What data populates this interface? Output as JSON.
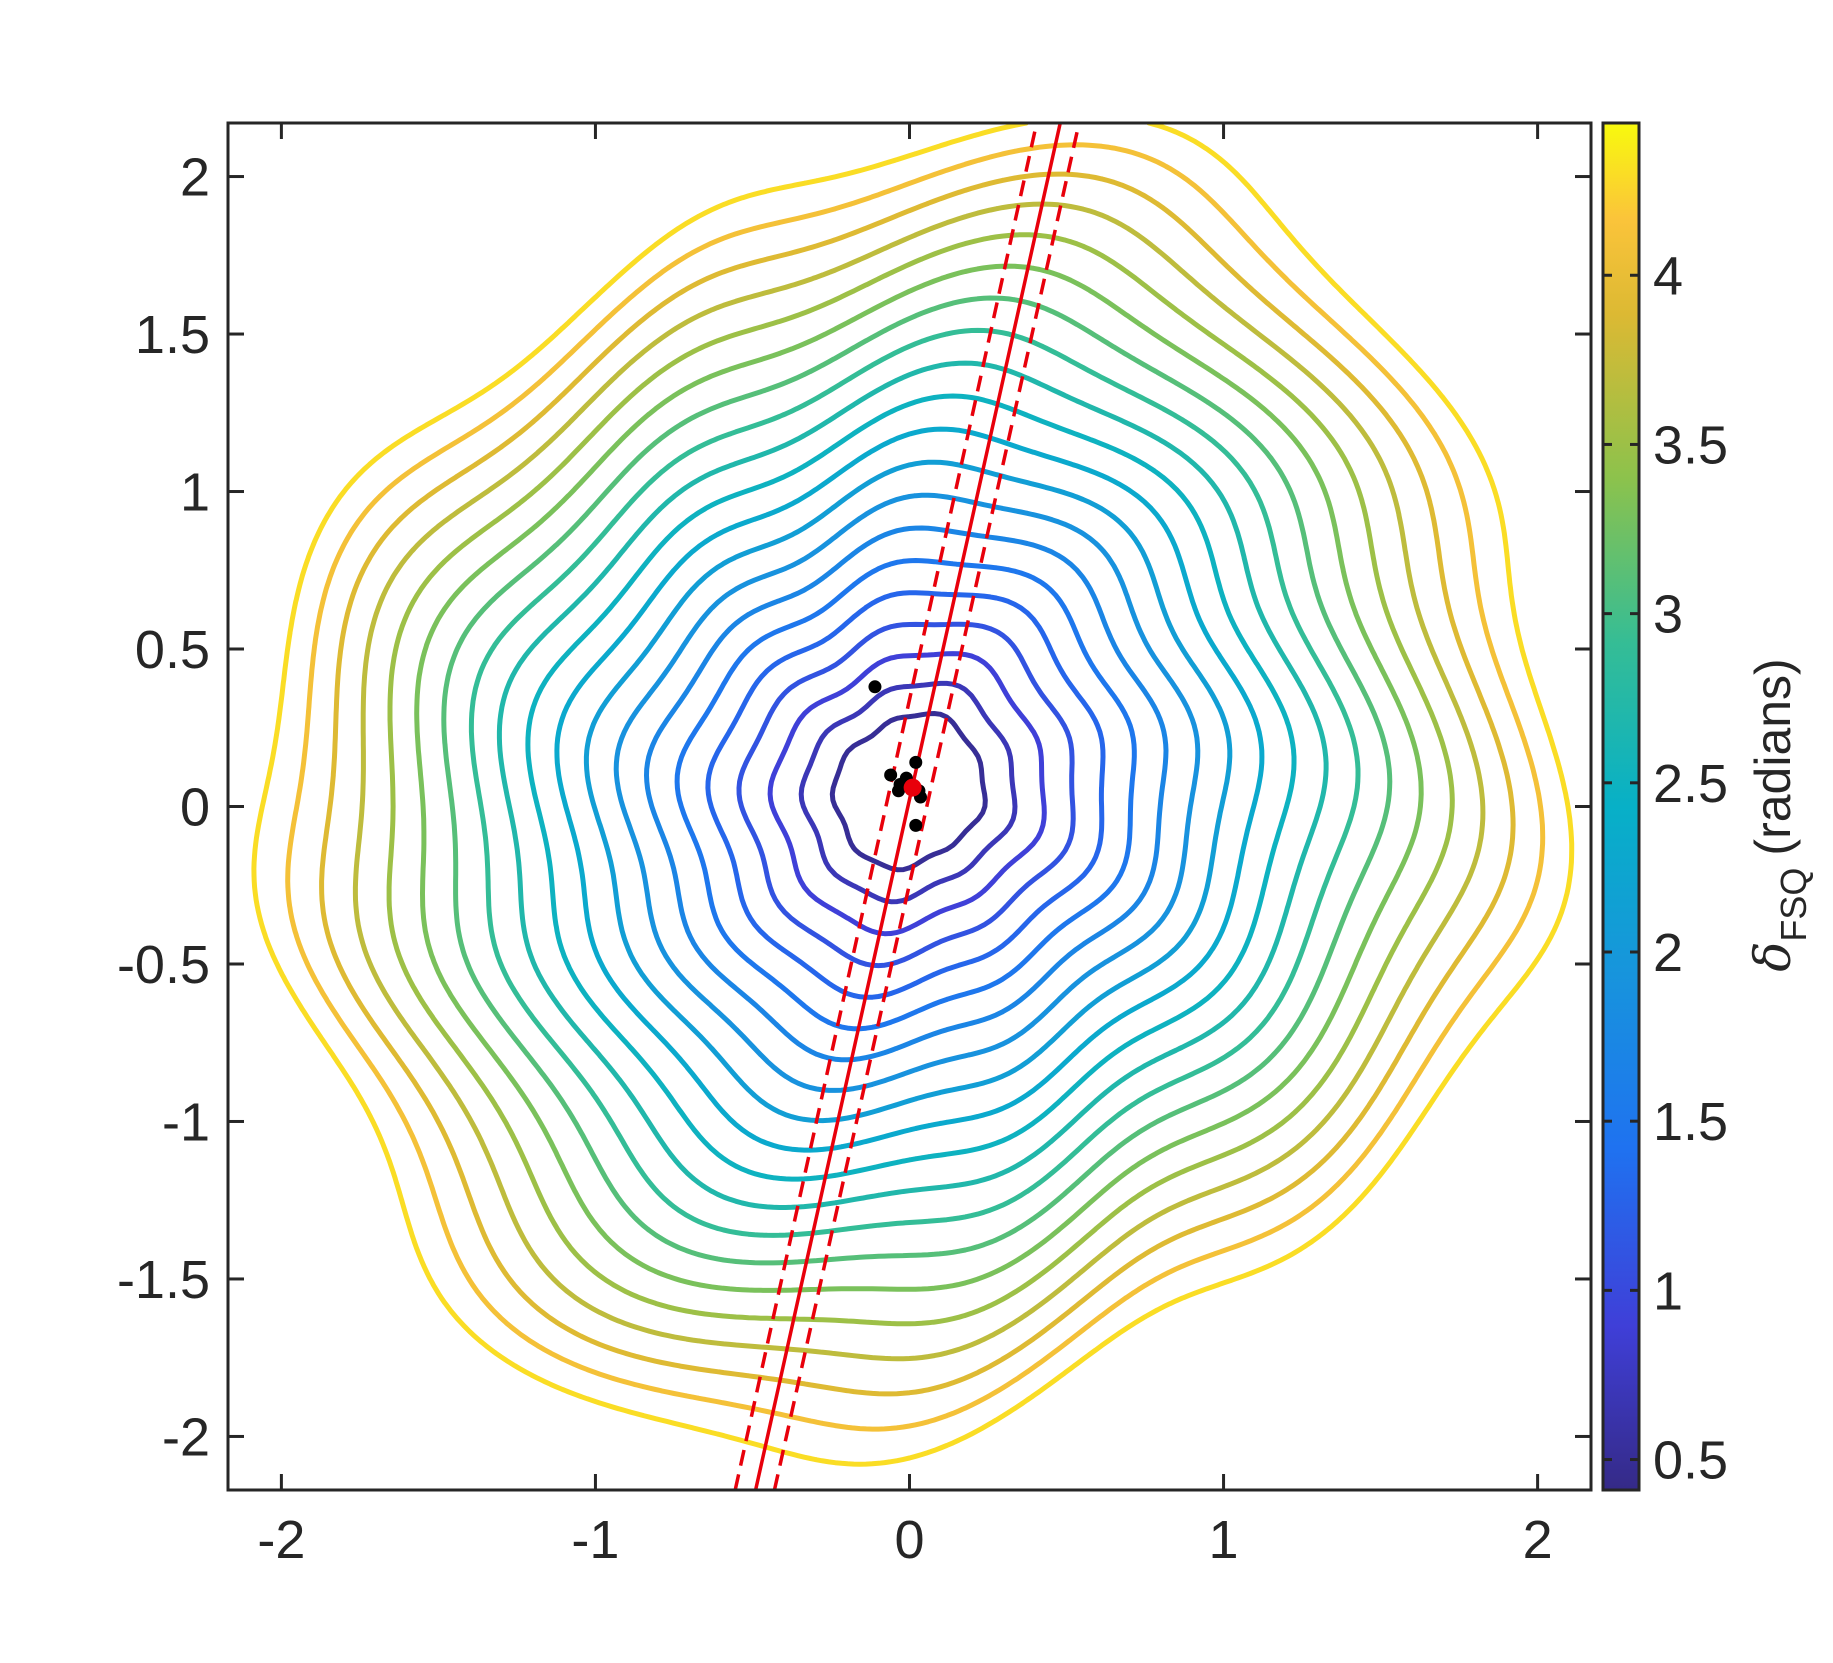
{
  "chart_data": {
    "type": "contour",
    "xlim": [
      -2.17,
      2.17
    ],
    "ylim": [
      -2.17,
      2.17
    ],
    "xticks": [
      -2,
      -1,
      0,
      1,
      2
    ],
    "yticks": [
      -2,
      -1.5,
      -1,
      -0.5,
      0,
      0.5,
      1,
      1.5,
      2
    ],
    "levels": [
      0.5,
      0.7,
      0.9,
      1.1,
      1.3,
      1.5,
      1.7,
      1.9,
      2.1,
      2.3,
      2.5,
      2.7,
      2.9,
      3.1,
      3.3,
      3.5,
      3.7,
      3.9,
      4.1,
      4.3
    ],
    "colormap": "parula",
    "clim": [
      0.41,
      4.45
    ],
    "cticks": [
      0.5,
      1,
      1.5,
      2,
      2.5,
      3,
      3.5,
      4
    ],
    "colorbar_label": {
      "symbol": "δ",
      "subscript": "FSQ",
      "text": "(radians)"
    },
    "lines": [
      {
        "style": "solid",
        "color": "#e8000b",
        "x": [
          -0.49,
          0.48
        ],
        "y": [
          -2.17,
          2.17
        ]
      },
      {
        "style": "dashed",
        "color": "#e8000b",
        "x": [
          -0.555,
          0.405
        ],
        "y": [
          -2.17,
          2.17
        ]
      },
      {
        "style": "dashed",
        "color": "#e8000b",
        "x": [
          -0.43,
          0.54
        ],
        "y": [
          -2.17,
          2.17
        ]
      }
    ],
    "points": {
      "color": "#000000",
      "x": [
        -0.11,
        -0.06,
        -0.03,
        -0.035,
        0.02,
        0.03,
        0.02,
        -0.01,
        0.035
      ],
      "y": [
        0.38,
        0.1,
        0.07,
        0.05,
        0.14,
        0.05,
        -0.06,
        0.09,
        0.03
      ]
    },
    "center": {
      "color": "#e8000b",
      "x": [
        0.01
      ],
      "y": [
        0.06
      ]
    }
  }
}
